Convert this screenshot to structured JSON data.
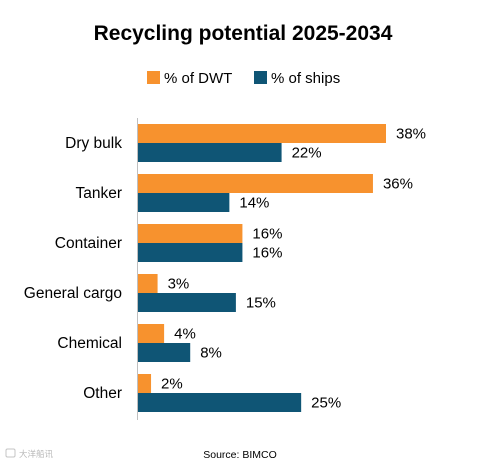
{
  "chart_data": {
    "type": "bar",
    "orientation": "horizontal",
    "title": "Recycling potential 2025-2034",
    "categories": [
      "Dry bulk",
      "Tanker",
      "Container",
      "General cargo",
      "Chemical",
      "Other"
    ],
    "series": [
      {
        "name": "% of DWT",
        "values": [
          38,
          36,
          16,
          3,
          4,
          2
        ],
        "labels": [
          "38%",
          "36%",
          "16%",
          "3%",
          "4%",
          "2%"
        ],
        "color": "#F7922E"
      },
      {
        "name": "% of ships",
        "values": [
          22,
          14,
          16,
          15,
          8,
          25
        ],
        "labels": [
          "22%",
          "14%",
          "16%",
          "15%",
          "8%",
          "25%"
        ],
        "color": "#0F5575"
      }
    ],
    "xlim": [
      0,
      38
    ],
    "grid": false,
    "legend_position": "top-center",
    "source": "Source: BIMCO"
  },
  "watermark": "大洋船讯"
}
